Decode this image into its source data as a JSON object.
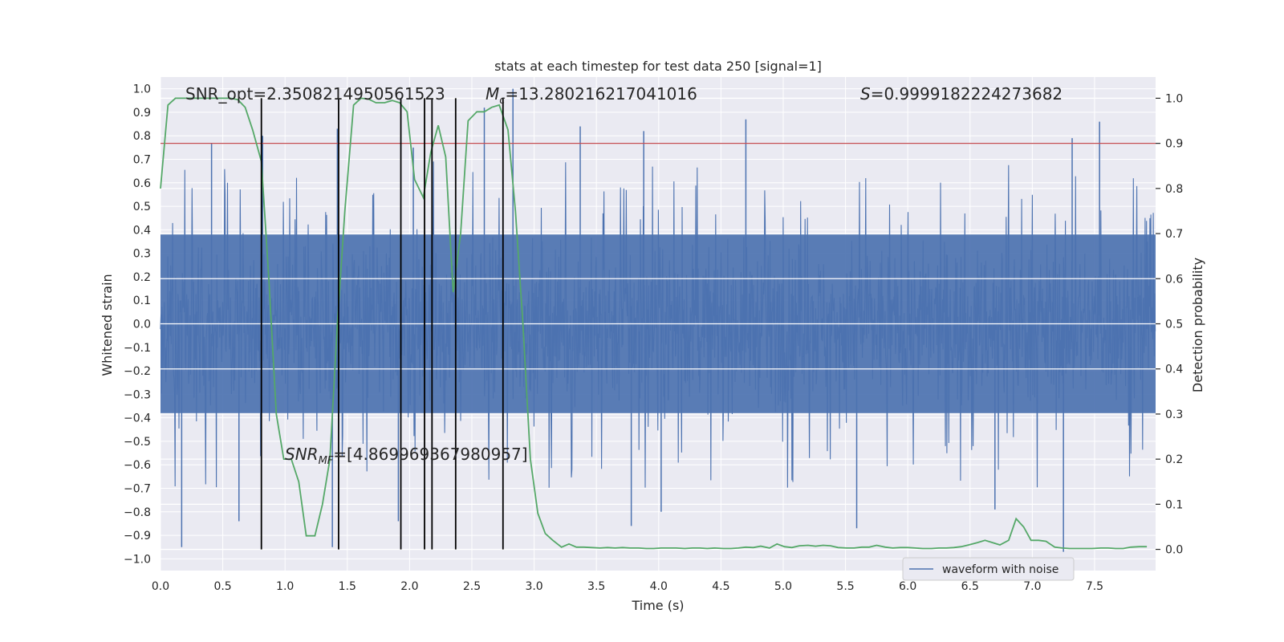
{
  "chart_data": {
    "type": "line",
    "title": "stats at each timestep for test data 250 [signal=1]",
    "xlabel": "Time (s)",
    "ylabel_left": "Whitened strain",
    "ylabel_right": "Detection probability",
    "xlim": [
      0.0,
      7.99
    ],
    "ylim_left": [
      -1.05,
      1.05
    ],
    "ylim_right": [
      -0.047,
      1.047
    ],
    "x_ticks": [
      0.0,
      0.5,
      1.0,
      1.5,
      2.0,
      2.5,
      3.0,
      3.5,
      4.0,
      4.5,
      5.0,
      5.5,
      6.0,
      6.5,
      7.0,
      7.5
    ],
    "x_tick_labels": [
      "0.0",
      "0.5",
      "1.0",
      "1.5",
      "2.0",
      "2.5",
      "3.0",
      "3.5",
      "4.0",
      "4.5",
      "5.0",
      "5.5",
      "6.0",
      "6.5",
      "7.0",
      "7.5"
    ],
    "y_left_ticks": [
      1.0,
      0.9,
      0.8,
      0.7,
      0.6,
      0.5,
      0.4,
      0.3,
      0.2,
      0.1,
      0.0,
      -0.1,
      -0.2,
      -0.3,
      -0.4,
      -0.5,
      -0.6,
      -0.7,
      -0.8,
      -0.9,
      -1.0
    ],
    "y_left_tick_labels": [
      "1.0",
      "0.9",
      "0.8",
      "0.7",
      "0.6",
      "0.5",
      "0.4",
      "0.3",
      "0.2",
      "0.1",
      "0.0",
      "−0.1",
      "−0.2",
      "−0.3",
      "−0.4",
      "−0.5",
      "−0.6",
      "−0.7",
      "−0.8",
      "−0.9",
      "−1.0"
    ],
    "y_right_ticks": [
      1.0,
      0.9,
      0.8,
      0.7,
      0.6,
      0.5,
      0.4,
      0.3,
      0.2,
      0.1,
      0.0
    ],
    "y_right_tick_labels": [
      "1.0",
      "0.9",
      "0.8",
      "0.7",
      "0.6",
      "0.5",
      "0.4",
      "0.3",
      "0.2",
      "0.1",
      "0.0"
    ],
    "grid": true,
    "legend": {
      "entries": [
        "waveform with noise"
      ],
      "placement": "lower-right"
    },
    "annotations": {
      "snr_opt": "SNR_opt=2.3508214950561523",
      "mc_symbol": "M",
      "mc_subscript": "c",
      "mc_value": "=13.280216217041016",
      "s_symbol": "S",
      "s_value": "=0.9999182224273682",
      "snrmf_symbol": "SNR",
      "snrmf_subscript": "MF",
      "snrmf_value": "=[4.869969367980957]"
    },
    "threshold": {
      "value": 0.9,
      "axis": "right",
      "color": "#c44e52"
    },
    "vertical_lines_x": [
      0.81,
      1.43,
      1.93,
      2.12,
      2.18,
      2.37,
      2.75
    ],
    "vertical_lines_ylim_right": [
      0.0,
      1.0
    ],
    "waveform": {
      "name": "waveform with noise",
      "color": "#4c72b0",
      "dt": 0.0039,
      "core_envelope": 0.38,
      "seed": 250,
      "spikes": [
        {
          "x": 0.17,
          "y": -0.95
        },
        {
          "x": 0.41,
          "y": 0.77
        },
        {
          "x": 0.63,
          "y": -0.84
        },
        {
          "x": 0.82,
          "y": 0.8
        },
        {
          "x": 1.38,
          "y": -0.95
        },
        {
          "x": 1.42,
          "y": 0.83
        },
        {
          "x": 1.91,
          "y": -0.84
        },
        {
          "x": 2.03,
          "y": 0.75
        },
        {
          "x": 2.6,
          "y": 0.92
        },
        {
          "x": 2.83,
          "y": 1.0
        },
        {
          "x": 3.37,
          "y": 0.84
        },
        {
          "x": 3.88,
          "y": 0.82
        },
        {
          "x": 4.02,
          "y": -0.8
        },
        {
          "x": 4.7,
          "y": 0.87
        },
        {
          "x": 5.59,
          "y": -0.87
        },
        {
          "x": 7.25,
          "y": -0.97
        },
        {
          "x": 7.54,
          "y": 0.86
        },
        {
          "x": 3.78,
          "y": -0.86
        },
        {
          "x": 6.7,
          "y": -0.79
        },
        {
          "x": 7.32,
          "y": 0.79
        }
      ]
    },
    "detection_probability": {
      "color": "#55a868",
      "x": [
        0.0,
        0.06,
        0.12,
        0.18,
        0.25,
        0.31,
        0.37,
        0.43,
        0.5,
        0.56,
        0.62,
        0.68,
        0.74,
        0.81,
        0.87,
        0.93,
        0.99,
        1.05,
        1.11,
        1.17,
        1.24,
        1.3,
        1.36,
        1.42,
        1.48,
        1.55,
        1.61,
        1.67,
        1.73,
        1.8,
        1.86,
        1.92,
        1.98,
        2.04,
        2.11,
        2.17,
        2.23,
        2.29,
        2.35,
        2.41,
        2.47,
        2.54,
        2.6,
        2.66,
        2.72,
        2.79,
        2.85,
        2.91,
        2.97,
        3.03,
        3.09,
        3.15,
        3.22,
        3.28,
        3.34,
        3.4,
        3.46,
        3.53,
        3.59,
        3.65,
        3.71,
        3.77,
        3.84,
        3.9,
        3.96,
        4.02,
        4.08,
        4.14,
        4.21,
        4.27,
        4.33,
        4.39,
        4.45,
        4.52,
        4.58,
        4.64,
        4.7,
        4.76,
        4.82,
        4.89,
        4.95,
        5.01,
        5.07,
        5.13,
        5.2,
        5.26,
        5.32,
        5.38,
        5.44,
        5.51,
        5.57,
        5.63,
        5.69,
        5.75,
        5.82,
        5.88,
        5.94,
        6.0,
        6.06,
        6.12,
        6.19,
        6.25,
        6.31,
        6.37,
        6.43,
        6.49,
        6.56,
        6.62,
        6.68,
        6.74,
        6.81,
        6.87,
        6.93,
        6.99,
        7.05,
        7.11,
        7.18,
        7.24,
        7.3,
        7.36,
        7.42,
        7.48,
        7.55,
        7.61,
        7.67,
        7.73,
        7.79,
        7.86,
        7.92
      ],
      "y": [
        0.8,
        0.985,
        1.0,
        1.0,
        1.0,
        1.0,
        1.0,
        1.0,
        1.0,
        1.0,
        0.997,
        0.98,
        0.93,
        0.86,
        0.6,
        0.3,
        0.2,
        0.2,
        0.15,
        0.03,
        0.03,
        0.1,
        0.2,
        0.5,
        0.75,
        0.985,
        1.0,
        0.998,
        0.99,
        0.99,
        0.995,
        0.99,
        0.97,
        0.82,
        0.78,
        0.88,
        0.94,
        0.87,
        0.57,
        0.7,
        0.95,
        0.97,
        0.97,
        0.98,
        0.985,
        0.93,
        0.75,
        0.5,
        0.2,
        0.08,
        0.035,
        0.02,
        0.005,
        0.012,
        0.005,
        0.005,
        0.004,
        0.003,
        0.004,
        0.003,
        0.004,
        0.003,
        0.003,
        0.002,
        0.002,
        0.003,
        0.003,
        0.003,
        0.002,
        0.003,
        0.003,
        0.002,
        0.003,
        0.002,
        0.002,
        0.003,
        0.005,
        0.004,
        0.007,
        0.003,
        0.012,
        0.006,
        0.004,
        0.008,
        0.009,
        0.007,
        0.009,
        0.008,
        0.004,
        0.003,
        0.003,
        0.005,
        0.005,
        0.009,
        0.005,
        0.003,
        0.004,
        0.004,
        0.003,
        0.002,
        0.002,
        0.003,
        0.003,
        0.004,
        0.006,
        0.01,
        0.015,
        0.02,
        0.015,
        0.01,
        0.02,
        0.068,
        0.05,
        0.02,
        0.02,
        0.018,
        0.005,
        0.003,
        0.002,
        0.002,
        0.002,
        0.002,
        0.003,
        0.003,
        0.002,
        0.002,
        0.005,
        0.006,
        0.006
      ]
    }
  }
}
